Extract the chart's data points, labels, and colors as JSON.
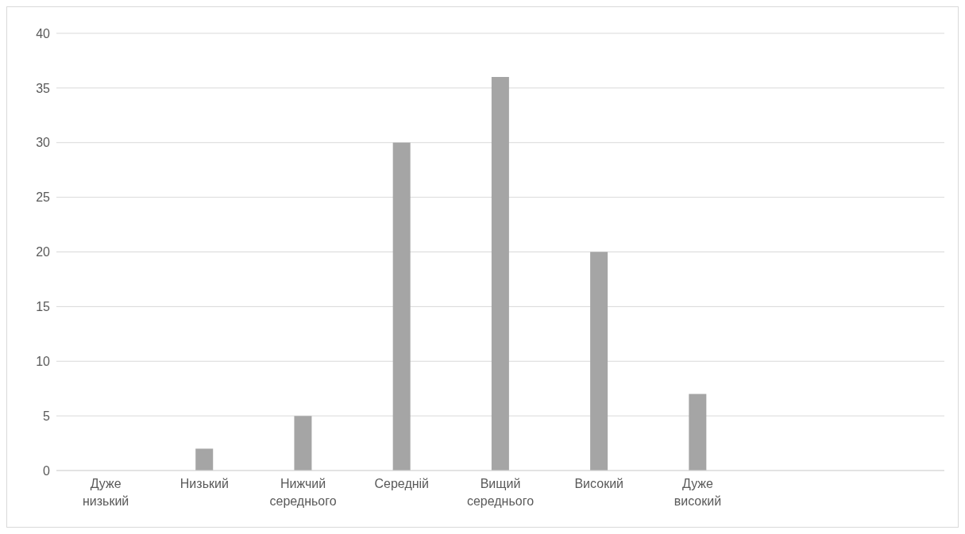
{
  "chart_data": {
    "type": "bar",
    "categories": [
      "Дуже низький",
      "Низький",
      "Нижчий середнього",
      "Середній",
      "Вищий середнього",
      "Високий",
      "Дуже високий",
      null,
      null
    ],
    "values": [
      0,
      2,
      5,
      30,
      36,
      20,
      7,
      null,
      null
    ],
    "color": "#a5a5a5",
    "ylim": [
      0,
      40
    ],
    "yticks": [
      0,
      5,
      10,
      15,
      20,
      25,
      30,
      35,
      40
    ],
    "grid": "y",
    "legend": false
  }
}
